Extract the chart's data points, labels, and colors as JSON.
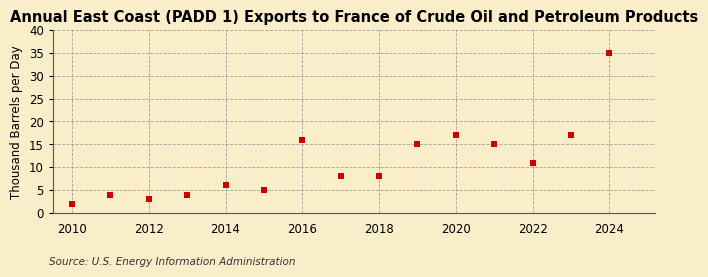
{
  "title": "Annual East Coast (PADD 1) Exports to France of Crude Oil and Petroleum Products",
  "ylabel": "Thousand Barrels per Day",
  "source": "Source: U.S. Energy Information Administration",
  "years": [
    2010,
    2011,
    2012,
    2013,
    2014,
    2015,
    2016,
    2017,
    2018,
    2019,
    2020,
    2021,
    2022,
    2023,
    2024
  ],
  "values": [
    2,
    4,
    3,
    4,
    6,
    5,
    16,
    8,
    8,
    15,
    17,
    15,
    11,
    17,
    35
  ],
  "marker_color": "#cc0000",
  "marker": "s",
  "marker_size": 4,
  "xlim": [
    2009.5,
    2025.2
  ],
  "ylim": [
    0,
    40
  ],
  "yticks": [
    0,
    5,
    10,
    15,
    20,
    25,
    30,
    35,
    40
  ],
  "xticks": [
    2010,
    2012,
    2014,
    2016,
    2018,
    2020,
    2022,
    2024
  ],
  "background_color": "#faeeca",
  "grid_color": "#999999",
  "title_fontsize": 10.5,
  "label_fontsize": 8.5,
  "tick_fontsize": 8.5,
  "source_fontsize": 7.5
}
